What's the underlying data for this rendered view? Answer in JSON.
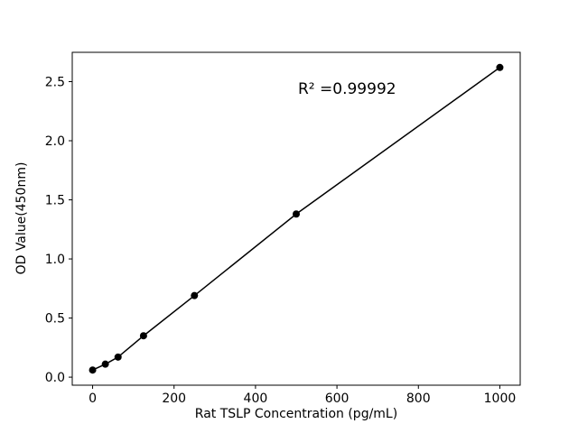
{
  "chart_data": {
    "type": "scatter",
    "title": "",
    "xlabel": "Rat TSLP Concentration (pg/mL)",
    "ylabel": "OD Value(450nm)",
    "annotation": {
      "text": "R² =0.99992",
      "x": 500,
      "y": 2.35
    },
    "x": [
      0,
      31.25,
      62.5,
      125,
      250,
      500,
      1000
    ],
    "y": [
      0.06,
      0.11,
      0.17,
      0.35,
      0.69,
      1.38,
      2.62
    ],
    "line": true,
    "legend": "none",
    "grid": false,
    "xlim": [
      -50,
      1050
    ],
    "ylim": [
      -0.068,
      2.748
    ],
    "xticks": [
      0,
      200,
      400,
      600,
      800,
      1000
    ],
    "yticks": [
      0.0,
      0.5,
      1.0,
      1.5,
      2.0,
      2.5
    ],
    "marker_color": "#000000",
    "line_color": "#000000",
    "background": "#ffffff"
  }
}
